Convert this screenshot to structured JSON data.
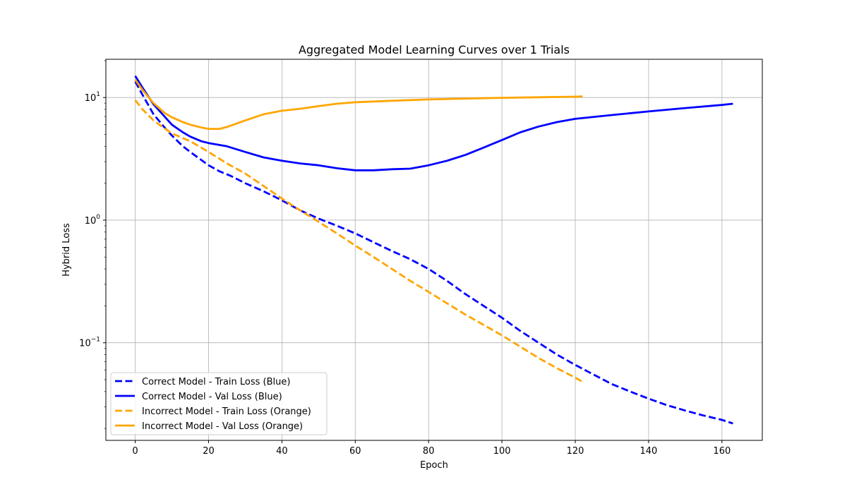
{
  "chart_data": {
    "type": "line",
    "title": "Aggregated Model Learning Curves over 1 Trials",
    "xlabel": "Epoch",
    "ylabel": "Hybrid Loss",
    "xlim": [
      -8,
      171
    ],
    "ylim": [
      0.016,
      20.5
    ],
    "yscale": "log",
    "grid": true,
    "legend_position": "lower-left",
    "x_ticks": [
      0,
      20,
      40,
      60,
      80,
      100,
      120,
      140,
      160
    ],
    "y_ticks": [
      {
        "value": 0.1,
        "base": "10",
        "exp": "−1"
      },
      {
        "value": 1,
        "base": "10",
        "exp": "0"
      },
      {
        "value": 10,
        "base": "10",
        "exp": "1"
      }
    ],
    "series": [
      {
        "name": "Correct Model - Train Loss (Blue)",
        "color": "#0000ff",
        "dash": true,
        "points": [
          [
            0,
            13.5
          ],
          [
            2,
            10.5
          ],
          [
            5,
            7.3
          ],
          [
            8,
            5.7
          ],
          [
            10,
            4.9
          ],
          [
            13,
            4.0
          ],
          [
            15,
            3.6
          ],
          [
            18,
            3.1
          ],
          [
            20,
            2.8
          ],
          [
            23,
            2.5
          ],
          [
            26,
            2.3
          ],
          [
            30,
            2.0
          ],
          [
            35,
            1.72
          ],
          [
            40,
            1.45
          ],
          [
            45,
            1.2
          ],
          [
            50,
            1.03
          ],
          [
            55,
            0.9
          ],
          [
            60,
            0.78
          ],
          [
            65,
            0.66
          ],
          [
            70,
            0.56
          ],
          [
            75,
            0.48
          ],
          [
            80,
            0.4
          ],
          [
            85,
            0.32
          ],
          [
            90,
            0.25
          ],
          [
            95,
            0.2
          ],
          [
            100,
            0.16
          ],
          [
            105,
            0.125
          ],
          [
            110,
            0.1
          ],
          [
            115,
            0.08
          ],
          [
            120,
            0.066
          ],
          [
            125,
            0.055
          ],
          [
            130,
            0.046
          ],
          [
            135,
            0.04
          ],
          [
            140,
            0.035
          ],
          [
            145,
            0.031
          ],
          [
            150,
            0.028
          ],
          [
            155,
            0.0255
          ],
          [
            160,
            0.0235
          ],
          [
            163,
            0.022
          ]
        ]
      },
      {
        "name": "Correct Model - Val Loss (Blue)",
        "color": "#0000ff",
        "dash": false,
        "points": [
          [
            0,
            15.0
          ],
          [
            2,
            12.0
          ],
          [
            5,
            8.8
          ],
          [
            8,
            7.0
          ],
          [
            10,
            6.0
          ],
          [
            13,
            5.2
          ],
          [
            15,
            4.8
          ],
          [
            18,
            4.4
          ],
          [
            20,
            4.25
          ],
          [
            25,
            4.0
          ],
          [
            30,
            3.6
          ],
          [
            35,
            3.25
          ],
          [
            40,
            3.05
          ],
          [
            45,
            2.9
          ],
          [
            50,
            2.8
          ],
          [
            55,
            2.65
          ],
          [
            60,
            2.55
          ],
          [
            65,
            2.55
          ],
          [
            70,
            2.6
          ],
          [
            75,
            2.63
          ],
          [
            80,
            2.8
          ],
          [
            85,
            3.05
          ],
          [
            90,
            3.4
          ],
          [
            95,
            3.9
          ],
          [
            100,
            4.5
          ],
          [
            105,
            5.2
          ],
          [
            110,
            5.8
          ],
          [
            115,
            6.3
          ],
          [
            120,
            6.7
          ],
          [
            130,
            7.2
          ],
          [
            140,
            7.7
          ],
          [
            150,
            8.2
          ],
          [
            160,
            8.7
          ],
          [
            163,
            8.9
          ]
        ]
      },
      {
        "name": "Incorrect Model - Train Loss (Orange)",
        "color": "#ffa500",
        "dash": true,
        "points": [
          [
            0,
            9.5
          ],
          [
            2,
            8.0
          ],
          [
            5,
            6.5
          ],
          [
            8,
            5.6
          ],
          [
            10,
            5.1
          ],
          [
            15,
            4.4
          ],
          [
            20,
            3.6
          ],
          [
            25,
            2.9
          ],
          [
            30,
            2.4
          ],
          [
            35,
            1.9
          ],
          [
            40,
            1.5
          ],
          [
            45,
            1.2
          ],
          [
            50,
            0.97
          ],
          [
            55,
            0.78
          ],
          [
            60,
            0.62
          ],
          [
            65,
            0.5
          ],
          [
            70,
            0.4
          ],
          [
            75,
            0.32
          ],
          [
            80,
            0.26
          ],
          [
            85,
            0.21
          ],
          [
            90,
            0.17
          ],
          [
            95,
            0.14
          ],
          [
            100,
            0.115
          ],
          [
            105,
            0.093
          ],
          [
            110,
            0.075
          ],
          [
            115,
            0.062
          ],
          [
            120,
            0.052
          ],
          [
            122,
            0.048
          ]
        ]
      },
      {
        "name": "Incorrect Model - Val Loss (Orange)",
        "color": "#ffa500",
        "dash": false,
        "points": [
          [
            0,
            14.0
          ],
          [
            2,
            11.5
          ],
          [
            5,
            9.0
          ],
          [
            8,
            7.5
          ],
          [
            10,
            6.9
          ],
          [
            13,
            6.3
          ],
          [
            15,
            6.0
          ],
          [
            18,
            5.7
          ],
          [
            20,
            5.55
          ],
          [
            23,
            5.55
          ],
          [
            25,
            5.75
          ],
          [
            30,
            6.5
          ],
          [
            35,
            7.3
          ],
          [
            40,
            7.8
          ],
          [
            45,
            8.1
          ],
          [
            50,
            8.5
          ],
          [
            55,
            8.9
          ],
          [
            60,
            9.15
          ],
          [
            70,
            9.4
          ],
          [
            80,
            9.65
          ],
          [
            90,
            9.8
          ],
          [
            100,
            9.95
          ],
          [
            110,
            10.05
          ],
          [
            120,
            10.15
          ],
          [
            122,
            10.2
          ]
        ]
      }
    ]
  }
}
